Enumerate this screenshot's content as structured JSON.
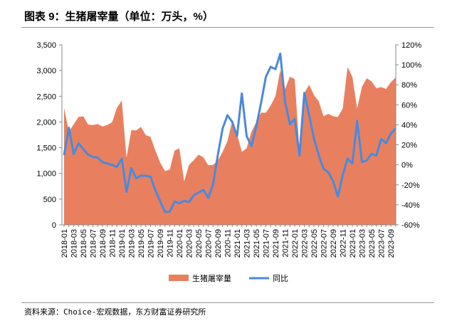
{
  "title": "图表 9：生猪屠宰量（单位：万头，%）",
  "source": "资料来源：Choice-宏观数据，东方财富证券研究所",
  "chart_data": {
    "type": "area+line",
    "title": "图表 9：生猪屠宰量（单位：万头，%）",
    "x_start": "2018-01",
    "tick_labels": [
      "2018-01",
      "2018-03",
      "2018-05",
      "2018-07",
      "2018-09",
      "2018-11",
      "2019-01",
      "2019-03",
      "2019-05",
      "2019-07",
      "2019-09",
      "2019-11",
      "2020-01",
      "2020-03",
      "2020-05",
      "2020-07",
      "2020-09",
      "2020-11",
      "2021-01",
      "2021-03",
      "2021-05",
      "2021-07",
      "2021-09",
      "2021-11",
      "2022-01",
      "2022-03",
      "2022-05",
      "2022-07",
      "2022-09",
      "2022-11",
      "2023-01",
      "2023-03",
      "2023-05",
      "2023-07",
      "2023-09"
    ],
    "left_axis": {
      "ylim": [
        0,
        3500
      ],
      "ticks": [
        "0",
        "500",
        "1,000",
        "1,500",
        "2,000",
        "2,500",
        "3,000",
        "3,500"
      ]
    },
    "right_axis": {
      "ylim": [
        -60,
        120
      ],
      "ticks": [
        "-60%",
        "-40%",
        "-20%",
        "0%",
        "20%",
        "40%",
        "60%",
        "80%",
        "100%",
        "120%"
      ]
    },
    "series": [
      {
        "name": "生猪屠宰量",
        "type": "area",
        "axis": "left",
        "color": "#E8805F",
        "values": [
          2272,
          1812,
          1950,
          2098,
          2112,
          1950,
          1941,
          1960,
          1913,
          1941,
          1996,
          2272,
          2420,
          1304,
          1844,
          1835,
          1904,
          1743,
          1711,
          1443,
          1213,
          1047,
          1075,
          1443,
          1489,
          844,
          1166,
          1259,
          1365,
          1314,
          1158,
          1166,
          1249,
          1420,
          1628,
          2019,
          1766,
          1420,
          1489,
          1812,
          1996,
          2181,
          2181,
          2319,
          2503,
          3011,
          2642,
          2881,
          2835,
          1443,
          2559,
          2724,
          2527,
          2402,
          2112,
          2158,
          2112,
          2098,
          2264,
          3066,
          2881,
          2264,
          2683,
          2849,
          2789,
          2655,
          2678,
          2642,
          2770,
          2863
        ]
      },
      {
        "name": "同比",
        "type": "line",
        "axis": "right",
        "color": "#4A89DC",
        "values": [
          9.7,
          37,
          10.9,
          21.6,
          15.7,
          10.2,
          7.8,
          7.3,
          2.6,
          1.4,
          -0.2,
          -2.1,
          6.2,
          -27,
          -3.3,
          -13.5,
          -10.9,
          -10.9,
          -12.1,
          -25.4,
          -36.5,
          -47.2,
          -46.7,
          -36.8,
          -38.4,
          -36,
          -37.2,
          -30.6,
          -27.7,
          -25.1,
          -33,
          -19.9,
          9.7,
          36.3,
          49.6,
          42.9,
          28.7,
          71.4,
          28.7,
          18.7,
          38.2,
          61.9,
          88,
          98,
          95.6,
          111.2,
          63.1,
          40.6,
          45.8,
          9.2,
          71.9,
          50,
          26.3,
          9.7,
          -4,
          -7.4,
          -16.4,
          -31.8,
          -10.4,
          6.2,
          1.4,
          44.1,
          2.6,
          4.5,
          10.9,
          9.2,
          25.8,
          21.6,
          31.1,
          36.3
        ]
      }
    ],
    "legend": {
      "placement": "bottom",
      "items": [
        "生猪屠宰量",
        "同比"
      ]
    },
    "grid": false
  }
}
